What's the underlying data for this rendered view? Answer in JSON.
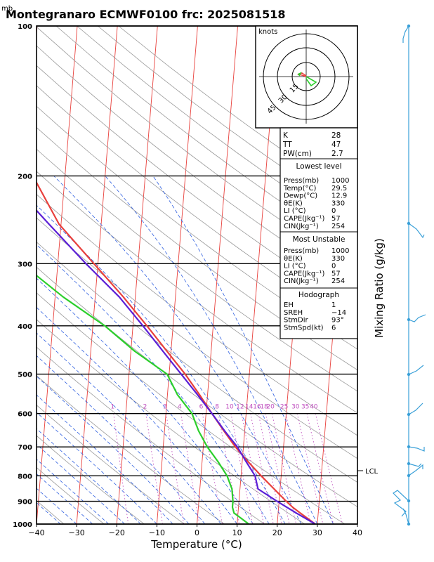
{
  "header": {
    "unit_label": "mb",
    "title": "Montegranaro ECMWF0100  frc: 2025081518"
  },
  "chart_data": {
    "type": "line",
    "title": "Montegranaro ECMWF0100  frc: 2025081518",
    "xlabel": "Temperature (°C)",
    "ylabel_right": "Mixing Ratio (g/kg)",
    "y_unit": "mb",
    "xlim": [
      -40,
      40
    ],
    "ylim": [
      1000,
      100
    ],
    "y_scale": "log",
    "x_ticks": [
      "−40",
      "−30",
      "−20",
      "−10",
      "0",
      "10",
      "20",
      "30",
      "40"
    ],
    "pressure_ticks": [
      100,
      200,
      300,
      400,
      500,
      600,
      700,
      800,
      900,
      1000
    ],
    "mixing_ratio_labels": [
      "1",
      "2",
      "3",
      "4",
      "6",
      "8",
      "10",
      "12",
      "14",
      "16",
      "18",
      "20",
      "25",
      "30",
      "35",
      "40"
    ],
    "lcl_label": "LCL",
    "series": [
      {
        "key": "temperature",
        "color": "#e8403c",
        "points": [
          [
            1000,
            29.5
          ],
          [
            950,
            25.5
          ],
          [
            925,
            23.5
          ],
          [
            900,
            21.8
          ],
          [
            850,
            18.5
          ],
          [
            800,
            15.0
          ],
          [
            750,
            11.5
          ],
          [
            700,
            8.0
          ],
          [
            650,
            4.8
          ],
          [
            600,
            1.5
          ],
          [
            550,
            -2.0
          ],
          [
            500,
            -6.0
          ],
          [
            450,
            -11.0
          ],
          [
            400,
            -16.5
          ],
          [
            350,
            -23.0
          ],
          [
            300,
            -31.0
          ],
          [
            250,
            -40.5
          ],
          [
            200,
            -48.0
          ],
          [
            150,
            -55.0
          ],
          [
            100,
            -65.0
          ]
        ]
      },
      {
        "key": "dewpoint",
        "color": "#2ccf2c",
        "points": [
          [
            1000,
            12.9
          ],
          [
            975,
            11.0
          ],
          [
            950,
            9.0
          ],
          [
            925,
            8.5
          ],
          [
            900,
            8.5
          ],
          [
            850,
            8.0
          ],
          [
            800,
            6.5
          ],
          [
            750,
            4.0
          ],
          [
            700,
            1.0
          ],
          [
            650,
            -1.5
          ],
          [
            600,
            -3.5
          ],
          [
            550,
            -7.5
          ],
          [
            500,
            -10.5
          ],
          [
            450,
            -19.0
          ],
          [
            400,
            -27.0
          ],
          [
            350,
            -38.0
          ],
          [
            300,
            -49.0
          ],
          [
            250,
            -63.0
          ],
          [
            200,
            -70.0
          ],
          [
            150,
            -75.0
          ],
          [
            100,
            -80.0
          ]
        ]
      },
      {
        "key": "parcel",
        "color": "#5b1fd6",
        "points": [
          [
            1000,
            29.5
          ],
          [
            950,
            24.5
          ],
          [
            900,
            19.5
          ],
          [
            850,
            14.5
          ],
          [
            800,
            13.5
          ],
          [
            750,
            11.0
          ],
          [
            700,
            8.5
          ],
          [
            650,
            5.0
          ],
          [
            600,
            1.5
          ],
          [
            550,
            -2.5
          ],
          [
            500,
            -7.0
          ],
          [
            450,
            -12.0
          ],
          [
            400,
            -17.5
          ],
          [
            350,
            -24.0
          ],
          [
            300,
            -33.0
          ],
          [
            250,
            -43.0
          ],
          [
            200,
            -55.0
          ],
          [
            150,
            -67.0
          ],
          [
            120,
            -75.0
          ]
        ]
      }
    ]
  },
  "hodograph": {
    "unit": "knots",
    "ring_labels": [
      "15",
      "30",
      "45"
    ]
  },
  "indices": {
    "k_label": "K",
    "k_value": "28",
    "tt_label": "TT",
    "tt_value": "47",
    "pw_label": "PW(cm)",
    "pw_value": "2.7"
  },
  "lowest_level": {
    "title": "Lowest level",
    "rows": [
      {
        "label": "Press(mb)",
        "value": "1000"
      },
      {
        "label": "Temp(°C)",
        "value": "29.5"
      },
      {
        "label": "Dewp(°C)",
        "value": "12.9"
      },
      {
        "label": "θE(K)",
        "value": "330"
      },
      {
        "label": "LI (°C)",
        "value": "0"
      },
      {
        "label": "CAPE(Jkg⁻¹)",
        "value": "57"
      },
      {
        "label": "CIN(Jkg⁻¹)",
        "value": "254"
      }
    ]
  },
  "most_unstable": {
    "title": "Most Unstable",
    "rows": [
      {
        "label": "Press(mb)",
        "value": "1000"
      },
      {
        "label": "θE(K)",
        "value": "330"
      },
      {
        "label": "LI (°C)",
        "value": "0"
      },
      {
        "label": "CAPE(Jkg⁻¹)",
        "value": "57"
      },
      {
        "label": "CIN(Jkg⁻¹)",
        "value": "254"
      }
    ]
  },
  "hodograph_stats": {
    "title": "Hodograph",
    "rows": [
      {
        "label": "EH",
        "value": "1"
      },
      {
        "label": "SREH",
        "value": "−14"
      },
      {
        "label": "StmDir",
        "value": "93°"
      },
      {
        "label": "StmSpd(kt)",
        "value": "6"
      }
    ]
  },
  "colors": {
    "isotherm": "#e8403c",
    "dry_adiabat": "#9a9a9a",
    "moist_adiabat": "#3060e0",
    "mixing_ratio": "#c050c0",
    "parcel": "#5b1fd6",
    "wind_barb": "#3aa0d8"
  }
}
